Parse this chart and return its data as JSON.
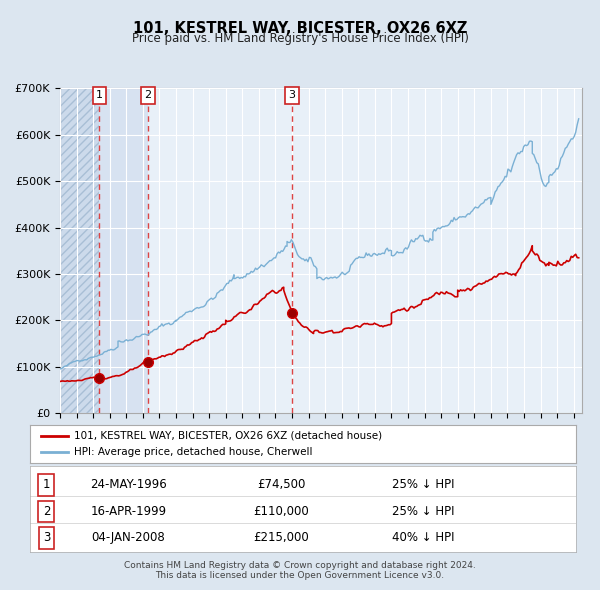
{
  "title": "101, KESTREL WAY, BICESTER, OX26 6XZ",
  "subtitle": "Price paid vs. HM Land Registry's House Price Index (HPI)",
  "bg_color": "#dce6f0",
  "plot_bg_color": "#e8f0f8",
  "grid_color": "#ffffff",
  "red_line_color": "#cc0000",
  "blue_line_color": "#7ab0d4",
  "sale_dates": [
    1996.38,
    1999.29,
    2008.01
  ],
  "sale_prices": [
    74500,
    110000,
    215000
  ],
  "sale_labels": [
    "1",
    "2",
    "3"
  ],
  "vline_color": "#dd4444",
  "highlight_span_1": [
    1996.38,
    1999.29
  ],
  "highlight_span_color": "#cddaed",
  "ylim": [
    0,
    700000
  ],
  "xlim_start": 1994.0,
  "xlim_end": 2025.5,
  "yticks": [
    0,
    100000,
    200000,
    300000,
    400000,
    500000,
    600000,
    700000
  ],
  "ytick_labels": [
    "£0",
    "£100K",
    "£200K",
    "£300K",
    "£400K",
    "£500K",
    "£600K",
    "£700K"
  ],
  "xticks": [
    1994,
    1995,
    1996,
    1997,
    1998,
    1999,
    2000,
    2001,
    2002,
    2003,
    2004,
    2005,
    2006,
    2007,
    2008,
    2009,
    2010,
    2011,
    2012,
    2013,
    2014,
    2015,
    2016,
    2017,
    2018,
    2019,
    2020,
    2021,
    2022,
    2023,
    2024,
    2025
  ],
  "legend_line1": "101, KESTREL WAY, BICESTER, OX26 6XZ (detached house)",
  "legend_line2": "HPI: Average price, detached house, Cherwell",
  "table_rows": [
    {
      "num": "1",
      "date": "24-MAY-1996",
      "price": "£74,500",
      "pct": "25%",
      "dir": "↓",
      "ref": "HPI"
    },
    {
      "num": "2",
      "date": "16-APR-1999",
      "price": "£110,000",
      "pct": "25%",
      "dir": "↓",
      "ref": "HPI"
    },
    {
      "num": "3",
      "date": "04-JAN-2008",
      "price": "£215,000",
      "pct": "40%",
      "dir": "↓",
      "ref": "HPI"
    }
  ],
  "footer_line1": "Contains HM Land Registry data © Crown copyright and database right 2024.",
  "footer_line2": "This data is licensed under the Open Government Licence v3.0."
}
